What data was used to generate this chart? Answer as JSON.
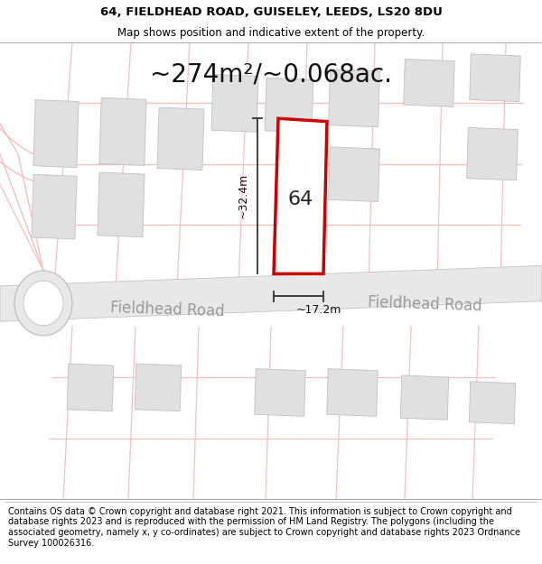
{
  "title_line1": "64, FIELDHEAD ROAD, GUISELEY, LEEDS, LS20 8DU",
  "title_line2": "Map shows position and indicative extent of the property.",
  "footer_text": "Contains OS data © Crown copyright and database right 2021. This information is subject to Crown copyright and database rights 2023 and is reproduced with the permission of HM Land Registry. The polygons (including the associated geometry, namely x, y co-ordinates) are subject to Crown copyright and database rights 2023 Ordnance Survey 100026316.",
  "area_label": "~274m²/~0.068ac.",
  "width_label": "~17.2m",
  "height_label": "~32.4m",
  "number_label": "64",
  "road_label1": "Fieldhead Road",
  "road_label2": "Fieldhead Road",
  "bg_color": "#ffffff",
  "map_bg": "#ffffff",
  "road_fill": "#e8e8e8",
  "building_fill": "#e0e0e0",
  "building_edge": "#c8c8c8",
  "plot_color": "#cc0000",
  "plot_fill": "#ffffff",
  "road_line_color": "#f5c0c0",
  "dim_line_color": "#333333",
  "title_fontsize": 9.5,
  "subtitle_fontsize": 8.5,
  "footer_fontsize": 7.0,
  "area_fontsize": 20,
  "number_fontsize": 16,
  "road_fontsize": 12
}
